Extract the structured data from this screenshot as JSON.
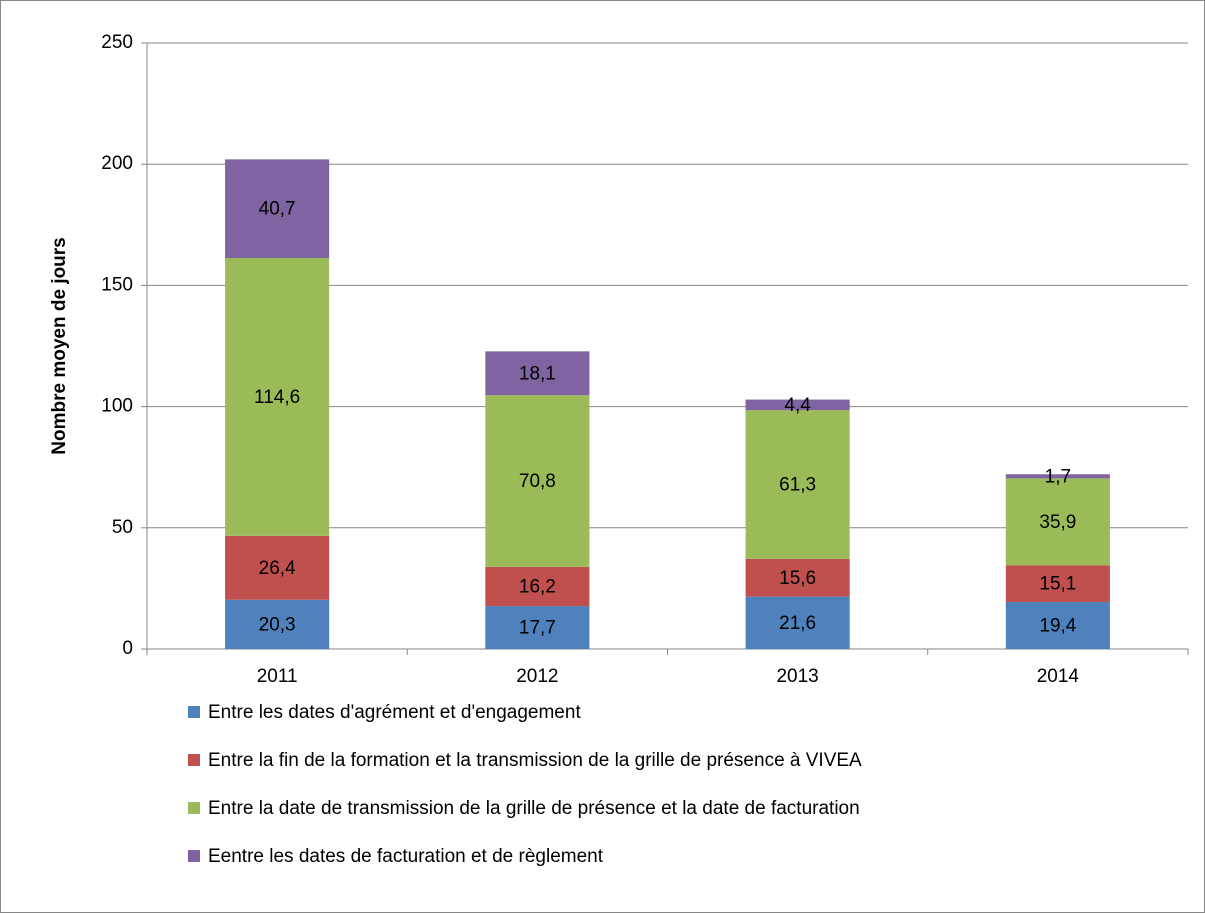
{
  "chart_data": {
    "type": "stacked_bar",
    "y_label": "Nombre moyen de jours",
    "categories": [
      "2011",
      "2012",
      "2013",
      "2014"
    ],
    "series": [
      {
        "name": "Entre les dates d'agrément et d'engagement",
        "color": "#4f81bd",
        "values": [
          20.3,
          17.7,
          21.6,
          19.4
        ],
        "value_labels": [
          "20,3",
          "17,7",
          "21,6",
          "19,4"
        ]
      },
      {
        "name": "Entre la fin de la formation et la transmission de la grille de présence à VIVEA",
        "color": "#c0504d",
        "values": [
          26.4,
          16.2,
          15.6,
          15.1
        ],
        "value_labels": [
          "26,4",
          "16,2",
          "15,6",
          "15,1"
        ]
      },
      {
        "name": "Entre la date de transmission de la grille de présence et la date de facturation",
        "color": "#9bbb59",
        "values": [
          114.6,
          70.8,
          61.3,
          35.9
        ],
        "value_labels": [
          "114,6",
          "70,8",
          "61,3",
          "35,9"
        ]
      },
      {
        "name": "Eentre les dates de facturation et de règlement",
        "color": "#8064a2",
        "values": [
          40.7,
          18.1,
          4.4,
          1.7
        ],
        "value_labels": [
          "40,7",
          "18,1",
          "4,4",
          "1,7"
        ]
      }
    ],
    "ylim": [
      0,
      250
    ],
    "yticks": [
      0,
      50,
      100,
      150,
      200,
      250
    ],
    "grid": true
  }
}
